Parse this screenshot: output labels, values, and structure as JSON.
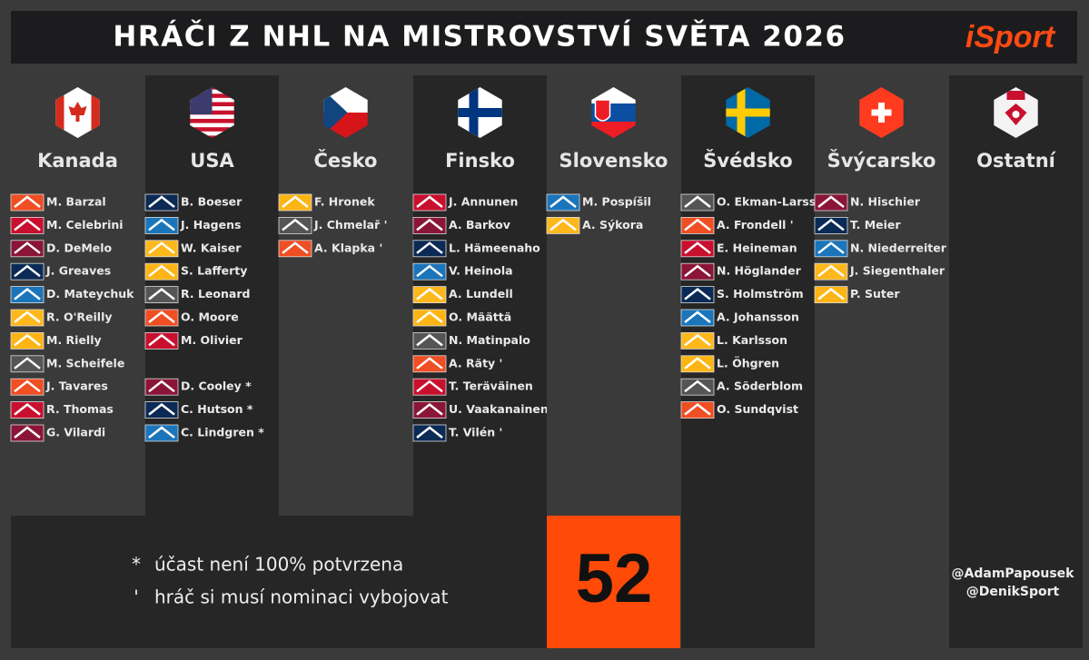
{
  "header": {
    "title": "HRÁČI Z NHL NA MISTROVSTVÍ SVĚTA 2026",
    "brand": "iSport"
  },
  "columns": [
    {
      "name": "Kanada",
      "players": [
        "M. Barzal",
        "M. Celebrini",
        "D. DeMelo",
        "J. Greaves",
        "D. Mateychuk",
        "R. O'Reilly",
        "M. Rielly",
        "M. Scheifele",
        "J. Tavares",
        "R. Thomas",
        "G. Vilardi"
      ]
    },
    {
      "name": "USA",
      "players": [
        "B. Boeser",
        "J. Hagens",
        "W. Kaiser",
        "S. Lafferty",
        "R. Leonard",
        "O. Moore",
        "M. Olivier"
      ],
      "uncertain": [
        "D. Cooley *",
        "C. Hutson *",
        "C. Lindgren *"
      ]
    },
    {
      "name": "Česko",
      "players": [
        "F. Hronek",
        "J. Chmelař '",
        "A. Klapka '"
      ]
    },
    {
      "name": "Finsko",
      "players": [
        "J. Annunen",
        "A. Barkov",
        "L. Hämeenaho",
        "V. Heinola",
        "A. Lundell",
        "O. Määttä",
        "N. Matinpalo",
        "A. Räty '",
        "T. Teräväinen",
        "U. Vaakanainen",
        "T. Vilén '"
      ]
    },
    {
      "name": "Slovensko",
      "players": [
        "M. Pospíšil",
        "A. Sýkora"
      ]
    },
    {
      "name": "Švédsko",
      "players": [
        "O. Ekman-Larsson",
        "A. Frondell '",
        "E. Heineman",
        "N. Höglander",
        "S. Holmström",
        "A. Johansson",
        "L. Karlsson",
        "L. Öhgren",
        "A. Söderblom",
        "O. Sundqvist"
      ]
    },
    {
      "name": "Švýcarsko",
      "players": [
        "N. Hischier",
        "T. Meier",
        "N. Niederreiter",
        "J. Siegenthaler",
        "P. Suter"
      ]
    },
    {
      "name": "Ostatní",
      "players": []
    }
  ],
  "legend": [
    {
      "symbol": "*",
      "text": "účast není 100% potvrzena"
    },
    {
      "symbol": "'",
      "text": "hráč si musí nominaci vybojovat"
    }
  ],
  "total": 52,
  "handles": [
    "@AdamPapousek",
    "@DenikSport"
  ]
}
